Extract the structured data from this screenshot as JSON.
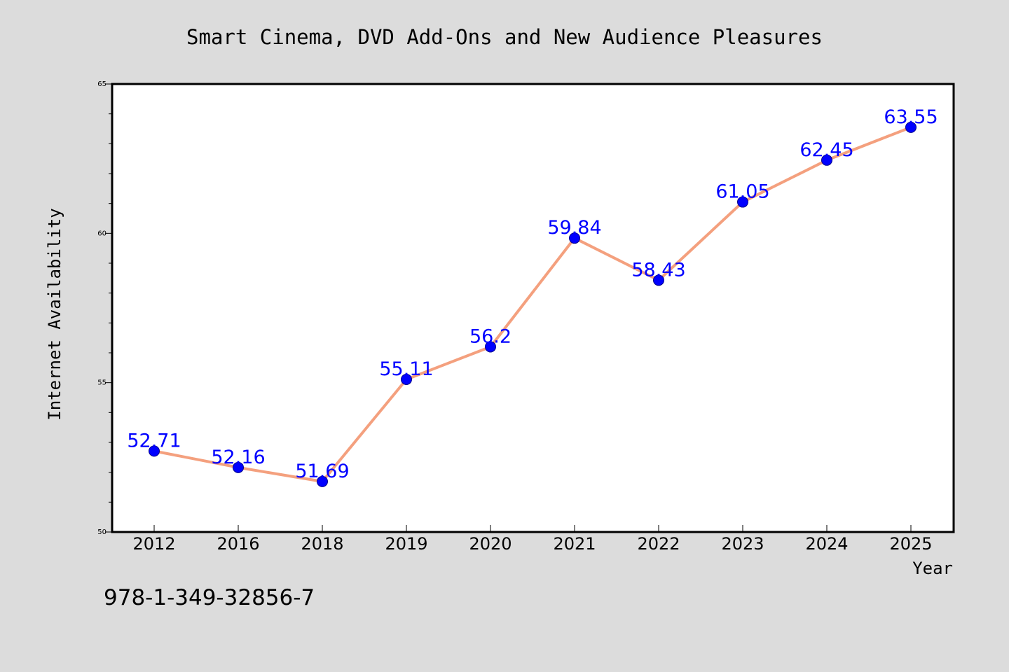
{
  "chart_data": {
    "type": "line",
    "title": "Smart Cinema, DVD Add-Ons and New Audience Pleasures",
    "xlabel": "Year",
    "ylabel": "Internet Availability",
    "categories": [
      "2012",
      "2016",
      "2018",
      "2019",
      "2020",
      "2021",
      "2022",
      "2023",
      "2024",
      "2025"
    ],
    "series": [
      {
        "values": [
          52.71,
          52.16,
          51.69,
          55.11,
          56.2,
          59.84,
          58.43,
          61.05,
          62.45,
          63.55
        ],
        "labels": [
          "52.71",
          "52.16",
          "51.69",
          "55.11",
          "56.2",
          "59.84",
          "58.43",
          "61.05",
          "62.45",
          "63.55"
        ]
      }
    ],
    "ylim": [
      50,
      65
    ],
    "yticks": [
      "50",
      "55",
      "60",
      "65"
    ],
    "grid": false,
    "legend": "none",
    "colors": {
      "line": "#f4a07e",
      "marker": "#0000ff",
      "data_label": "#0000ff",
      "background": "#dcdcdc",
      "plot_background": "#ffffff"
    }
  },
  "footer": {
    "isbn": "978-1-349-32856-7"
  }
}
